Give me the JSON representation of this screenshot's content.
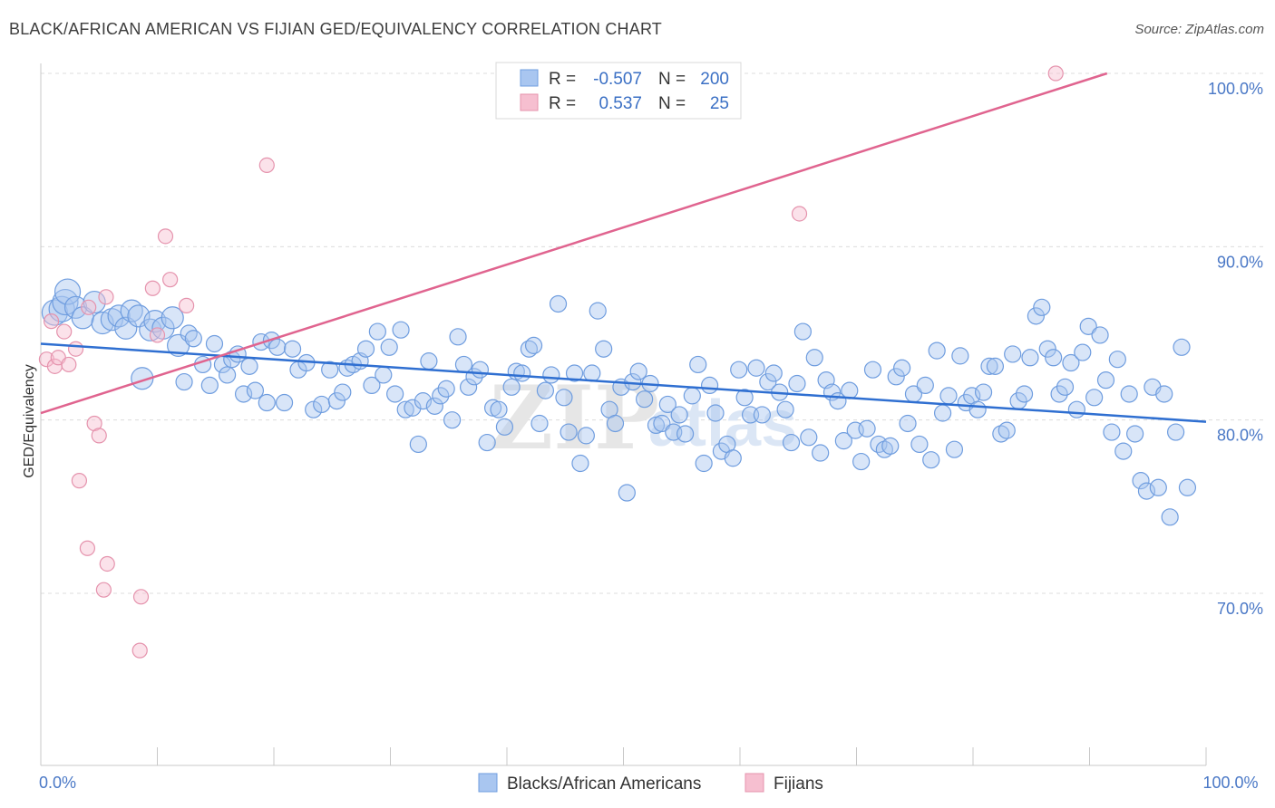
{
  "title": "BLACK/AFRICAN AMERICAN VS FIJIAN GED/EQUIVALENCY CORRELATION CHART",
  "source": "Source: ZipAtlas.com",
  "colors": {
    "blue_fill": "#a9c6f0",
    "blue_stroke": "#6f9ddf",
    "blue_line": "#2f6fd1",
    "pink_fill": "#f6bfd0",
    "pink_stroke": "#e593ad",
    "pink_line": "#e0648f",
    "grid": "#dcdcdc",
    "tick_text": "#4a78c6"
  },
  "legend": {
    "rows": [
      {
        "r_label": "R =",
        "r_value": "-0.507",
        "n_label": "N =",
        "n_value": "200"
      },
      {
        "r_label": "R =",
        "r_value": "0.537",
        "n_label": "N =",
        "n_value": "25"
      }
    ]
  },
  "watermark": {
    "zip": "ZIP",
    "atlas": "atlas"
  },
  "chart_data": {
    "type": "scatter",
    "ylabel": "GED/Equivalency",
    "xlabel": "",
    "xlim": [
      0,
      100
    ],
    "ylim": [
      60.5,
      101
    ],
    "x_tick_labels": [
      {
        "value": 0,
        "label": "0.0%"
      },
      {
        "value": 100,
        "label": "100.0%"
      }
    ],
    "y_tick_labels": [
      {
        "value": 100,
        "label": "100.0%"
      },
      {
        "value": 90,
        "label": "90.0%"
      },
      {
        "value": 80,
        "label": "80.0%"
      },
      {
        "value": 70,
        "label": "70.0%"
      }
    ],
    "grid": true,
    "legend_position": "top-center",
    "series": [
      {
        "name": "Blacks/African Americans",
        "trend": {
          "x": [
            0,
            100
          ],
          "y": [
            84.4,
            79.9
          ]
        },
        "points": [
          [
            1.2,
            86.2
          ],
          [
            1.8,
            86.4
          ],
          [
            2.1,
            86.8
          ],
          [
            2.3,
            87.4
          ],
          [
            3.0,
            86.5
          ],
          [
            3.6,
            85.9
          ],
          [
            4.6,
            86.8
          ],
          [
            5.3,
            85.6
          ],
          [
            6.1,
            85.8
          ],
          [
            6.7,
            86.0
          ],
          [
            7.3,
            85.3
          ],
          [
            7.8,
            86.3
          ],
          [
            8.4,
            86.0
          ],
          [
            8.7,
            82.4
          ],
          [
            9.4,
            85.2
          ],
          [
            9.8,
            85.7
          ],
          [
            10.5,
            85.3
          ],
          [
            11.3,
            85.9
          ],
          [
            11.8,
            84.3
          ],
          [
            12.3,
            82.2
          ],
          [
            12.7,
            85.0
          ],
          [
            13.1,
            84.7
          ],
          [
            13.9,
            83.2
          ],
          [
            14.5,
            82.0
          ],
          [
            14.9,
            84.4
          ],
          [
            15.6,
            83.2
          ],
          [
            16.0,
            82.6
          ],
          [
            16.4,
            83.5
          ],
          [
            16.9,
            83.8
          ],
          [
            17.4,
            81.5
          ],
          [
            17.9,
            83.1
          ],
          [
            18.4,
            81.7
          ],
          [
            18.9,
            84.5
          ],
          [
            19.4,
            81.0
          ],
          [
            19.8,
            84.6
          ],
          [
            20.3,
            84.2
          ],
          [
            20.9,
            81.0
          ],
          [
            21.6,
            84.1
          ],
          [
            22.1,
            82.9
          ],
          [
            22.8,
            83.3
          ],
          [
            23.4,
            80.6
          ],
          [
            24.1,
            80.9
          ],
          [
            24.8,
            82.9
          ],
          [
            25.4,
            81.1
          ],
          [
            25.9,
            81.6
          ],
          [
            26.3,
            83.0
          ],
          [
            26.8,
            83.2
          ],
          [
            27.4,
            83.4
          ],
          [
            27.9,
            84.1
          ],
          [
            28.4,
            82.0
          ],
          [
            28.9,
            85.1
          ],
          [
            29.4,
            82.6
          ],
          [
            29.9,
            84.2
          ],
          [
            30.4,
            81.5
          ],
          [
            30.9,
            85.2
          ],
          [
            31.3,
            80.6
          ],
          [
            31.9,
            80.7
          ],
          [
            32.4,
            78.6
          ],
          [
            32.8,
            81.1
          ],
          [
            33.3,
            83.4
          ],
          [
            33.8,
            80.8
          ],
          [
            34.3,
            81.4
          ],
          [
            34.8,
            81.8
          ],
          [
            35.3,
            80.0
          ],
          [
            35.8,
            84.8
          ],
          [
            36.3,
            83.2
          ],
          [
            36.7,
            81.9
          ],
          [
            37.2,
            82.5
          ],
          [
            37.7,
            82.9
          ],
          [
            38.3,
            78.7
          ],
          [
            38.8,
            80.7
          ],
          [
            39.3,
            80.6
          ],
          [
            39.8,
            79.6
          ],
          [
            40.4,
            81.9
          ],
          [
            40.8,
            82.8
          ],
          [
            41.3,
            82.7
          ],
          [
            41.9,
            84.1
          ],
          [
            42.3,
            84.3
          ],
          [
            42.8,
            79.8
          ],
          [
            43.3,
            81.7
          ],
          [
            43.8,
            82.6
          ],
          [
            44.4,
            86.7
          ],
          [
            44.9,
            81.3
          ],
          [
            45.3,
            79.3
          ],
          [
            45.8,
            82.7
          ],
          [
            46.3,
            77.5
          ],
          [
            46.8,
            79.1
          ],
          [
            47.3,
            82.7
          ],
          [
            47.8,
            86.3
          ],
          [
            48.3,
            84.1
          ],
          [
            48.8,
            80.6
          ],
          [
            49.3,
            79.8
          ],
          [
            49.8,
            81.9
          ],
          [
            50.3,
            75.8
          ],
          [
            50.8,
            82.2
          ],
          [
            51.3,
            82.8
          ],
          [
            51.8,
            81.2
          ],
          [
            52.3,
            82.1
          ],
          [
            52.8,
            79.7
          ],
          [
            53.3,
            79.8
          ],
          [
            53.8,
            80.9
          ],
          [
            54.3,
            79.3
          ],
          [
            54.8,
            80.3
          ],
          [
            55.3,
            79.2
          ],
          [
            55.9,
            81.4
          ],
          [
            56.4,
            83.2
          ],
          [
            56.9,
            77.5
          ],
          [
            57.4,
            82.0
          ],
          [
            57.9,
            80.4
          ],
          [
            58.4,
            78.2
          ],
          [
            58.9,
            78.6
          ],
          [
            59.4,
            77.8
          ],
          [
            59.9,
            82.9
          ],
          [
            60.4,
            81.3
          ],
          [
            60.9,
            80.3
          ],
          [
            61.4,
            83.0
          ],
          [
            61.9,
            80.3
          ],
          [
            62.4,
            82.2
          ],
          [
            62.9,
            82.7
          ],
          [
            63.4,
            81.6
          ],
          [
            63.9,
            80.6
          ],
          [
            64.4,
            78.7
          ],
          [
            64.9,
            82.1
          ],
          [
            65.4,
            85.1
          ],
          [
            65.9,
            79.0
          ],
          [
            66.4,
            83.6
          ],
          [
            66.9,
            78.1
          ],
          [
            67.4,
            82.3
          ],
          [
            67.9,
            81.6
          ],
          [
            68.4,
            81.1
          ],
          [
            68.9,
            78.8
          ],
          [
            69.4,
            81.7
          ],
          [
            69.9,
            79.4
          ],
          [
            70.4,
            77.6
          ],
          [
            70.9,
            79.5
          ],
          [
            71.4,
            82.9
          ],
          [
            71.9,
            78.6
          ],
          [
            72.4,
            78.3
          ],
          [
            72.9,
            78.5
          ],
          [
            73.4,
            82.5
          ],
          [
            73.9,
            83.0
          ],
          [
            74.4,
            79.8
          ],
          [
            74.9,
            81.5
          ],
          [
            75.4,
            78.6
          ],
          [
            75.9,
            82.0
          ],
          [
            76.4,
            77.7
          ],
          [
            76.9,
            84.0
          ],
          [
            77.4,
            80.4
          ],
          [
            77.9,
            81.4
          ],
          [
            78.4,
            78.3
          ],
          [
            78.9,
            83.7
          ],
          [
            79.4,
            81.0
          ],
          [
            79.9,
            81.4
          ],
          [
            80.4,
            80.6
          ],
          [
            80.9,
            81.6
          ],
          [
            81.4,
            83.1
          ],
          [
            81.9,
            83.1
          ],
          [
            82.4,
            79.2
          ],
          [
            82.9,
            79.4
          ],
          [
            83.4,
            83.8
          ],
          [
            83.9,
            81.1
          ],
          [
            84.4,
            81.5
          ],
          [
            84.9,
            83.6
          ],
          [
            85.4,
            86.0
          ],
          [
            85.9,
            86.5
          ],
          [
            86.4,
            84.1
          ],
          [
            86.9,
            83.6
          ],
          [
            87.4,
            81.5
          ],
          [
            87.9,
            81.9
          ],
          [
            88.4,
            83.3
          ],
          [
            88.9,
            80.6
          ],
          [
            89.4,
            83.9
          ],
          [
            89.9,
            85.4
          ],
          [
            90.4,
            81.3
          ],
          [
            90.9,
            84.9
          ],
          [
            91.4,
            82.3
          ],
          [
            91.9,
            79.3
          ],
          [
            92.4,
            83.5
          ],
          [
            92.9,
            78.2
          ],
          [
            93.4,
            81.5
          ],
          [
            93.9,
            79.2
          ],
          [
            94.4,
            76.5
          ],
          [
            94.9,
            75.9
          ],
          [
            95.4,
            81.9
          ],
          [
            95.9,
            76.1
          ],
          [
            96.4,
            81.5
          ],
          [
            96.9,
            74.4
          ],
          [
            97.4,
            79.3
          ],
          [
            97.9,
            84.2
          ],
          [
            98.4,
            76.1
          ]
        ]
      },
      {
        "name": "Fijians",
        "trend": {
          "x": [
            0,
            91.5
          ],
          "y": [
            80.4,
            100
          ]
        },
        "points": [
          [
            0.5,
            83.5
          ],
          [
            0.9,
            85.7
          ],
          [
            1.2,
            83.1
          ],
          [
            1.5,
            83.6
          ],
          [
            2.0,
            85.1
          ],
          [
            2.4,
            83.2
          ],
          [
            3.0,
            84.1
          ],
          [
            4.1,
            86.5
          ],
          [
            4.6,
            79.8
          ],
          [
            5.0,
            79.1
          ],
          [
            3.3,
            76.5
          ],
          [
            4.0,
            72.6
          ],
          [
            5.6,
            87.1
          ],
          [
            5.7,
            71.7
          ],
          [
            5.4,
            70.2
          ],
          [
            8.6,
            69.8
          ],
          [
            8.5,
            66.7
          ],
          [
            9.6,
            87.6
          ],
          [
            10.0,
            84.9
          ],
          [
            10.7,
            90.6
          ],
          [
            11.1,
            88.1
          ],
          [
            12.5,
            86.6
          ],
          [
            19.4,
            94.7
          ],
          [
            65.1,
            91.9
          ],
          [
            87.1,
            100.0
          ]
        ]
      }
    ]
  }
}
